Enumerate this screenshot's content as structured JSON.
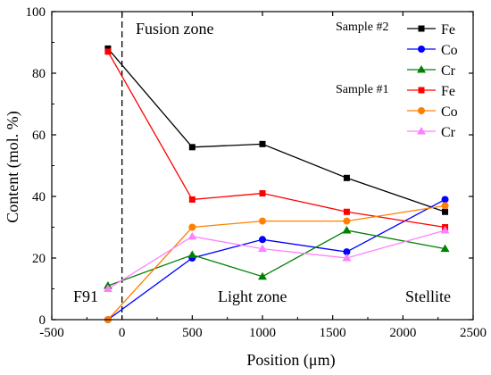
{
  "chart_data": {
    "type": "line",
    "title": "",
    "xlabel": "Position (μm)",
    "ylabel": "Content (mol. %)",
    "xlim": [
      -500,
      2500
    ],
    "ylim": [
      0,
      100
    ],
    "xticks": [
      -500,
      0,
      500,
      1000,
      1500,
      2000,
      2500
    ],
    "yticks": [
      0,
      20,
      40,
      60,
      80,
      100
    ],
    "grid": false,
    "legend_position": "top-right",
    "x": [
      -100,
      500,
      1000,
      1600,
      2300
    ],
    "series": [
      {
        "name": "Fe",
        "group": "Sample #2",
        "color": "#000000",
        "marker": "square",
        "values": [
          88,
          56,
          57,
          46,
          35
        ]
      },
      {
        "name": "Co",
        "group": "Sample #2",
        "color": "#0000ff",
        "marker": "circle",
        "values": [
          0,
          20,
          26,
          22,
          39
        ]
      },
      {
        "name": "Cr",
        "group": "Sample #2",
        "color": "#008000",
        "marker": "triangle",
        "values": [
          11,
          21,
          14,
          29,
          23
        ]
      },
      {
        "name": "Fe",
        "group": "Sample #1",
        "color": "#ff0000",
        "marker": "square",
        "values": [
          87,
          39,
          41,
          35,
          30
        ]
      },
      {
        "name": "Co",
        "group": "Sample #1",
        "color": "#ff8000",
        "marker": "circle",
        "values": [
          0,
          30,
          32,
          32,
          37
        ]
      },
      {
        "name": "Cr",
        "group": "Sample #1",
        "color": "#ff80ff",
        "marker": "triangle",
        "values": [
          10,
          27,
          23,
          20,
          29
        ]
      }
    ],
    "vline": {
      "x": 0,
      "style": "dashed",
      "color": "#000000"
    },
    "annotations": {
      "fusion_zone": "Fusion zone",
      "f91": "F91",
      "light_zone": "Light zone",
      "stellite": "Stellite"
    },
    "legend_groups": [
      "Sample #2",
      "Sample #1"
    ]
  }
}
